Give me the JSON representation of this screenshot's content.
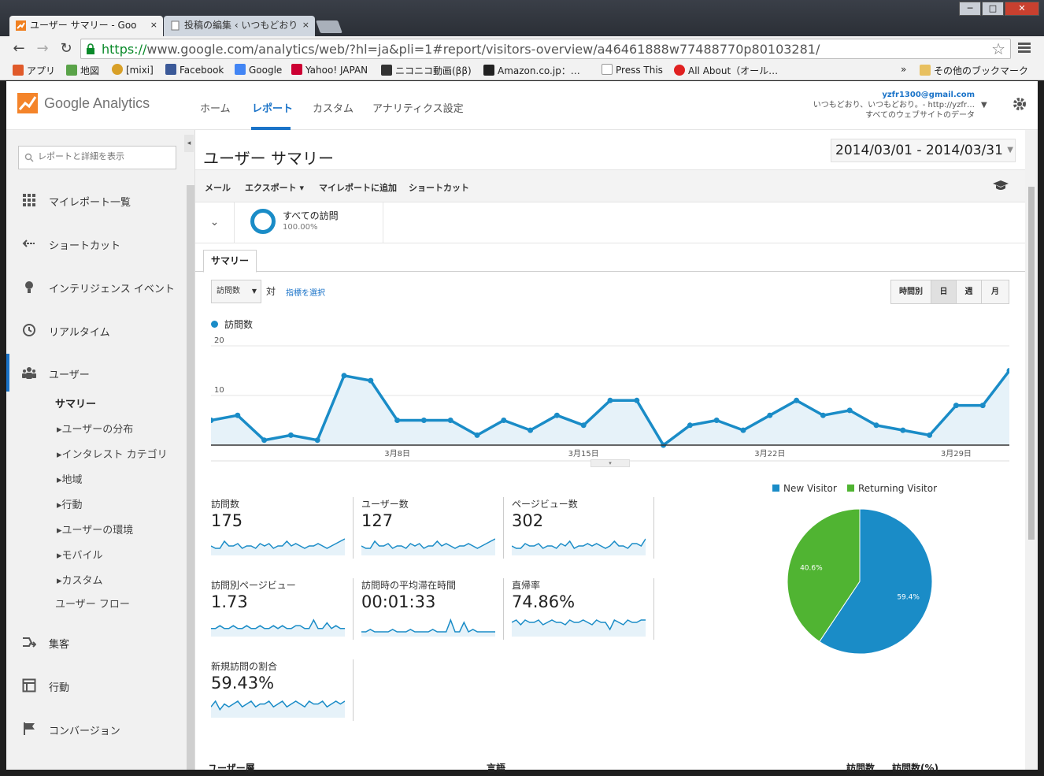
{
  "browser": {
    "tabs": [
      {
        "label": "ユーザー サマリー - Goo",
        "close": "×"
      },
      {
        "label": "投稿の編集 ‹ いつもどおり",
        "close": "×"
      }
    ],
    "window_controls": {
      "minimize": "─",
      "maximize": "□",
      "close": "✕"
    },
    "url": {
      "scheme": "https://",
      "rest": "www.google.com/analytics/web/?hl=ja&pli=1#report/visitors-overview/a46461888w77488770p80103281/"
    },
    "nav": {
      "back": "←",
      "forward": "→",
      "reload": "↻",
      "star": "☆"
    },
    "bookmarks": [
      {
        "label": "アプリ",
        "color": "#e05a2a"
      },
      {
        "label": "地図",
        "color": "#5aa349"
      },
      {
        "label": "[mixi]",
        "color": "#d8a028"
      },
      {
        "label": "Facebook",
        "color": "#3b5998"
      },
      {
        "label": "Google",
        "color": "#4285f4"
      },
      {
        "label": "Yahoo! JAPAN",
        "color": "#cc0033"
      },
      {
        "label": "ニコニコ動画(ββ)",
        "color": "#333333"
      },
      {
        "label": "Amazon.co.jp：…",
        "color": "#222222"
      },
      {
        "label": "Press This",
        "color": "#dddddd"
      },
      {
        "label": "All About（オール…",
        "color": "#e02020"
      }
    ],
    "bookmarks_more": "»",
    "other_bookmarks": "その他のブックマーク"
  },
  "ga": {
    "logo_text": "Google Analytics",
    "nav": [
      "ホーム",
      "レポート",
      "カスタム",
      "アナリティクス設定"
    ],
    "account": {
      "email": "yzfr1300@gmail.com",
      "property": "いつもどおり、いつもどおり。- http://yzfr…",
      "view": "すべてのウェブサイトのデータ"
    }
  },
  "sidebar": {
    "search_placeholder": "レポートと詳細を表示",
    "collapse": "◂",
    "sections": [
      {
        "label": "マイレポート一覧",
        "icon": "grid-icon"
      },
      {
        "label": "ショートカット",
        "icon": "shortcut-arrow-icon"
      },
      {
        "label": "インテリジェンス イベント",
        "icon": "lightbulb-icon"
      },
      {
        "label": "リアルタイム",
        "icon": "clock-icon"
      },
      {
        "label": "ユーザー",
        "icon": "users-icon"
      }
    ],
    "user_subitems": [
      "サマリー",
      "▸ユーザーの分布",
      "▸インタレスト カテゴリ",
      "▸地域",
      "▸行動",
      "▸ユーザーの環境",
      "▸モバイル",
      "▸カスタム",
      "ユーザー フロー"
    ],
    "bottom_sections": [
      {
        "label": "集客",
        "icon": "acquisition-icon"
      },
      {
        "label": "行動",
        "icon": "behavior-icon"
      },
      {
        "label": "コンバージョン",
        "icon": "flag-icon"
      }
    ]
  },
  "report": {
    "title": "ユーザー サマリー",
    "date_range": "2014/03/01 - 2014/03/31",
    "actions": [
      "メール",
      "エクスポート ▾",
      "マイレポートに追加",
      "ショートカット"
    ],
    "segment": {
      "name": "すべての訪問",
      "percent": "100.00%",
      "toggle": "⌄"
    },
    "tab": "サマリー",
    "metric_select": "訪問数",
    "versus": "対",
    "pick_metric": "指標を選択",
    "granularity": [
      "時間別",
      "日",
      "週",
      "月"
    ],
    "granularity_active": "日",
    "legend": "訪問数",
    "chart_handle": "▾",
    "tiles": [
      {
        "name": "訪問数",
        "value": "175"
      },
      {
        "name": "ユーザー数",
        "value": "127"
      },
      {
        "name": "ページビュー数",
        "value": "302"
      },
      {
        "name": "訪問別ページビュー",
        "value": "1.73"
      },
      {
        "name": "訪問時の平均滞在時間",
        "value": "00:01:33"
      },
      {
        "name": "直帰率",
        "value": "74.86%"
      },
      {
        "name": "新規訪問の割合",
        "value": "59.43%"
      }
    ],
    "table_headers": [
      "ユーザー層",
      "言語",
      "訪問数",
      "訪問数(%)"
    ]
  },
  "chart_data": [
    {
      "type": "area",
      "title": "",
      "series": [
        {
          "name": "訪問数",
          "values": [
            5,
            6,
            1,
            2,
            1,
            14,
            13,
            5,
            5,
            5,
            2,
            5,
            3,
            6,
            4,
            9,
            9,
            0,
            4,
            5,
            3,
            6,
            9,
            6,
            7,
            4,
            3,
            2,
            8,
            8,
            15
          ]
        }
      ],
      "x": [
        "3/1",
        "3/2",
        "3/3",
        "3/4",
        "3/5",
        "3/6",
        "3/7",
        "3/8",
        "3/9",
        "3/10",
        "3/11",
        "3/12",
        "3/13",
        "3/14",
        "3/15",
        "3/16",
        "3/17",
        "3/18",
        "3/19",
        "3/20",
        "3/21",
        "3/22",
        "3/23",
        "3/24",
        "3/25",
        "3/26",
        "3/27",
        "3/28",
        "3/29",
        "3/30",
        "3/31"
      ],
      "x_tick_labels": [
        "3月8日",
        "3月15日",
        "3月22日",
        "3月29日"
      ],
      "y_tick_labels": [
        "10",
        "20"
      ],
      "ylim": [
        0,
        20
      ],
      "color": "#1a8cc7",
      "grid": true
    },
    {
      "type": "pie",
      "slices": [
        {
          "name": "New Visitor",
          "value": 59.4,
          "label": "59.4%",
          "color": "#1a8cc7"
        },
        {
          "name": "Returning Visitor",
          "value": 40.6,
          "label": "40.6%",
          "color": "#50b432"
        }
      ],
      "legend": "top"
    }
  ],
  "sparklines": [
    [
      3,
      2,
      2,
      5,
      3,
      3,
      4,
      2,
      3,
      3,
      2,
      4,
      3,
      4,
      2,
      3,
      3,
      5,
      3,
      4,
      3,
      2,
      3,
      3,
      4,
      3,
      2,
      3,
      4,
      5,
      6
    ],
    [
      3,
      2,
      2,
      5,
      3,
      3,
      4,
      2,
      3,
      3,
      2,
      4,
      3,
      4,
      2,
      3,
      3,
      5,
      3,
      4,
      3,
      2,
      3,
      3,
      4,
      3,
      2,
      3,
      4,
      5,
      6
    ],
    [
      3,
      2,
      2,
      4,
      3,
      3,
      4,
      2,
      3,
      3,
      2,
      4,
      3,
      5,
      2,
      3,
      3,
      4,
      3,
      4,
      3,
      2,
      3,
      5,
      3,
      3,
      2,
      4,
      4,
      3,
      6
    ],
    [
      2,
      2,
      3,
      2,
      2,
      3,
      2,
      2,
      3,
      2,
      2,
      3,
      2,
      2,
      3,
      2,
      3,
      2,
      2,
      3,
      3,
      2,
      2,
      5,
      2,
      2,
      4,
      2,
      3,
      2,
      2
    ],
    [
      1,
      1,
      2,
      1,
      1,
      1,
      1,
      2,
      1,
      1,
      1,
      2,
      1,
      1,
      1,
      1,
      2,
      1,
      1,
      1,
      6,
      1,
      1,
      5,
      1,
      2,
      1,
      1,
      1,
      1,
      1
    ],
    [
      5,
      6,
      4,
      6,
      5,
      5,
      6,
      4,
      5,
      6,
      5,
      5,
      4,
      6,
      5,
      5,
      6,
      5,
      4,
      6,
      5,
      5,
      2,
      6,
      5,
      4,
      6,
      5,
      5,
      6,
      6
    ],
    [
      3,
      5,
      2,
      4,
      3,
      4,
      5,
      3,
      4,
      5,
      3,
      4,
      4,
      5,
      3,
      4,
      5,
      3,
      4,
      5,
      4,
      3,
      5,
      4,
      4,
      5,
      3,
      4,
      5,
      4,
      5
    ]
  ]
}
